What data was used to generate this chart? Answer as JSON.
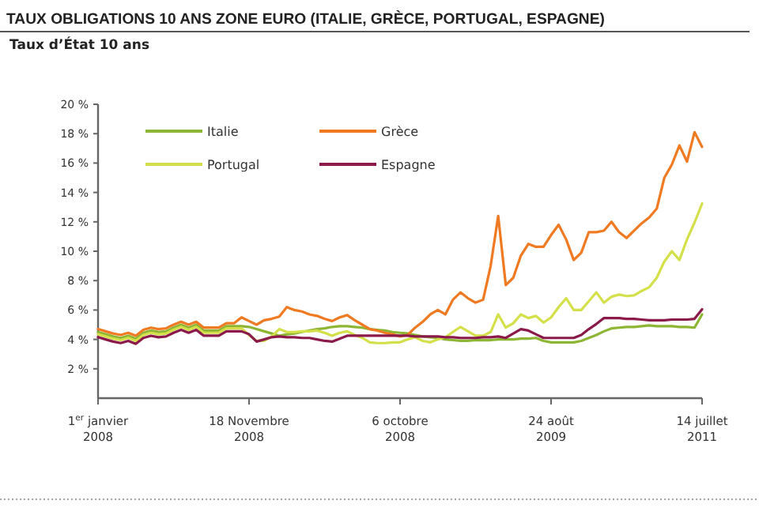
{
  "chart_data": {
    "type": "line",
    "title": "TAUX OBLIGATIONS 10 ANS ZONE EURO (ITALIE, GRÈCE, PORTUGAL, ESPAGNE)",
    "subtitle": "Taux d’État 10 ans",
    "categories": [
      "1$^{er}$ janvier\n2008",
      null,
      null,
      null,
      null,
      null,
      null,
      null,
      null,
      null,
      null,
      null,
      null,
      null,
      null,
      null,
      null,
      null,
      null,
      null,
      "18 Novembre\n2008",
      null,
      null,
      null,
      null,
      null,
      null,
      null,
      null,
      null,
      null,
      null,
      null,
      null,
      null,
      null,
      null,
      null,
      null,
      null,
      "6 octobre\n2008",
      null,
      null,
      null,
      null,
      null,
      null,
      null,
      null,
      null,
      null,
      null,
      null,
      null,
      null,
      null,
      null,
      null,
      null,
      null,
      "24 août\n2009",
      null,
      null,
      null,
      null,
      null,
      null,
      null,
      null,
      null,
      null,
      null,
      null,
      null,
      null,
      null,
      null,
      null,
      null,
      null,
      "14 juillet\n2011"
    ],
    "ylim": [
      0,
      20
    ],
    "yticks": [
      {
        "value": 2,
        "label": "2 %"
      },
      {
        "value": 4,
        "label": "4 %"
      },
      {
        "value": 6,
        "label": "6 %"
      },
      {
        "value": 8,
        "label": "8 %"
      },
      {
        "value": 10,
        "label": "10 %"
      },
      {
        "value": 12,
        "label": "12 %"
      },
      {
        "value": 14,
        "label": "14 %"
      },
      {
        "value": 16,
        "label": "16 %"
      },
      {
        "value": 18,
        "label": "18 %"
      },
      {
        "value": 20,
        "label": "20 %"
      }
    ],
    "grid": false,
    "legend": "top left",
    "marker": "none",
    "line_style": "solid",
    "series": [
      {
        "name": "Italie",
        "color": "#8db634",
        "values": [
          4.5,
          4.35,
          4.2,
          4.1,
          4.25,
          4.05,
          4.45,
          4.6,
          4.5,
          4.55,
          4.8,
          5.0,
          4.8,
          5.0,
          4.6,
          4.6,
          4.6,
          4.9,
          4.9,
          4.9,
          4.85,
          4.7,
          4.55,
          4.4,
          4.25,
          4.35,
          4.4,
          4.5,
          4.6,
          4.7,
          4.75,
          4.85,
          4.9,
          4.9,
          4.85,
          4.8,
          4.7,
          4.65,
          4.6,
          4.5,
          4.45,
          4.4,
          4.3,
          4.2,
          4.15,
          4.1,
          4.0,
          3.95,
          3.9,
          3.9,
          3.95,
          3.95,
          3.95,
          4.0,
          4.0,
          4.0,
          4.05,
          4.05,
          4.1,
          3.9,
          3.8,
          3.8,
          3.8,
          3.8,
          3.9,
          4.1,
          4.3,
          4.55,
          4.75,
          4.8,
          4.85,
          4.85,
          4.9,
          4.95,
          4.9,
          4.9,
          4.9,
          4.85,
          4.85,
          4.8,
          5.7
        ]
      },
      {
        "name": "Grèce",
        "color": "#f07a22",
        "values": [
          4.7,
          4.55,
          4.4,
          4.3,
          4.45,
          4.25,
          4.65,
          4.8,
          4.7,
          4.75,
          5.0,
          5.2,
          5.0,
          5.2,
          4.8,
          4.8,
          4.8,
          5.1,
          5.1,
          5.5,
          5.25,
          5.0,
          5.3,
          5.4,
          5.55,
          6.2,
          6.0,
          5.9,
          5.7,
          5.6,
          5.4,
          5.25,
          5.5,
          5.65,
          5.3,
          5.0,
          4.7,
          4.6,
          4.45,
          4.35,
          4.2,
          4.3,
          4.8,
          5.2,
          5.7,
          6.0,
          5.7,
          6.7,
          7.2,
          6.8,
          6.5,
          6.7,
          9.0,
          12.4,
          7.7,
          8.2,
          9.7,
          10.5,
          10.3,
          10.3,
          11.1,
          11.8,
          10.8,
          9.4,
          9.9,
          11.3,
          11.3,
          11.4,
          12.0,
          11.3,
          10.9,
          11.4,
          11.9,
          12.3,
          12.9,
          15.0,
          15.9,
          17.2,
          16.1,
          18.1,
          17.1
        ]
      },
      {
        "name": "Portugal",
        "color": "#d4e04a",
        "values": [
          4.35,
          4.2,
          4.05,
          3.95,
          4.1,
          3.9,
          4.3,
          4.45,
          4.35,
          4.4,
          4.65,
          4.85,
          4.65,
          4.85,
          4.45,
          4.45,
          4.45,
          4.75,
          4.75,
          4.75,
          4.3,
          3.9,
          3.9,
          4.2,
          4.7,
          4.5,
          4.5,
          4.55,
          4.55,
          4.6,
          4.45,
          4.25,
          4.45,
          4.55,
          4.3,
          4.1,
          3.8,
          3.75,
          3.75,
          3.8,
          3.8,
          4.0,
          4.15,
          3.9,
          3.8,
          4.0,
          4.15,
          4.5,
          4.85,
          4.55,
          4.25,
          4.25,
          4.5,
          5.7,
          4.8,
          5.1,
          5.7,
          5.45,
          5.6,
          5.15,
          5.5,
          6.2,
          6.8,
          6.0,
          6.0,
          6.6,
          7.2,
          6.5,
          6.9,
          7.05,
          6.95,
          7.0,
          7.3,
          7.55,
          8.2,
          9.3,
          10.0,
          9.4,
          10.8,
          11.95,
          13.25
        ]
      },
      {
        "name": "Espagne",
        "color": "#8b1a4a",
        "values": [
          4.15,
          4.0,
          3.85,
          3.75,
          3.9,
          3.7,
          4.1,
          4.25,
          4.15,
          4.2,
          4.45,
          4.65,
          4.45,
          4.65,
          4.25,
          4.25,
          4.25,
          4.55,
          4.55,
          4.55,
          4.35,
          3.85,
          4.0,
          4.15,
          4.2,
          4.15,
          4.15,
          4.1,
          4.1,
          4.0,
          3.9,
          3.85,
          4.05,
          4.25,
          4.25,
          4.25,
          4.25,
          4.25,
          4.25,
          4.25,
          4.25,
          4.25,
          4.2,
          4.2,
          4.2,
          4.2,
          4.15,
          4.15,
          4.1,
          4.1,
          4.1,
          4.15,
          4.15,
          4.2,
          4.1,
          4.4,
          4.7,
          4.6,
          4.35,
          4.1,
          4.1,
          4.1,
          4.1,
          4.1,
          4.3,
          4.7,
          5.05,
          5.45,
          5.45,
          5.45,
          5.4,
          5.4,
          5.35,
          5.3,
          5.3,
          5.3,
          5.35,
          5.35,
          5.35,
          5.4,
          6.05
        ]
      }
    ]
  }
}
